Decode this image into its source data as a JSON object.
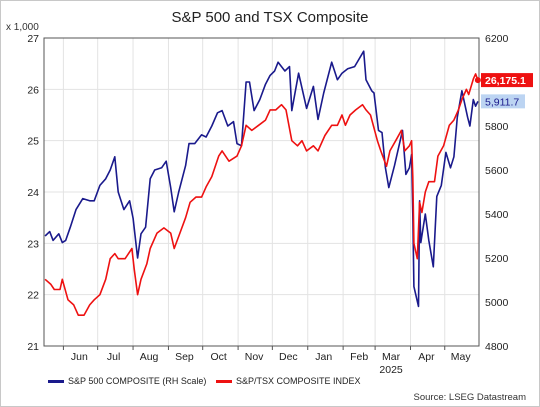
{
  "chart_data": {
    "type": "line",
    "title": "S&P 500 and TSX Composite",
    "unit_label": "x 1,000",
    "source": "Source: LSEG Datastream",
    "left_axis": {
      "min": 21,
      "max": 27,
      "ticks": [
        "27",
        "26",
        "25",
        "24",
        "23",
        "22",
        "21"
      ]
    },
    "right_axis": {
      "min": 4800,
      "max": 6200,
      "ticks": [
        "6200",
        "6000",
        "5800",
        "5600",
        "5400",
        "5200",
        "5000",
        "4800"
      ]
    },
    "x_axis": {
      "start": "2024-05-15",
      "end": "2025-05-31",
      "months": [
        {
          "label": "Jun",
          "date": "2024-06-15"
        },
        {
          "label": "Jul",
          "date": "2024-07-15"
        },
        {
          "label": "Aug",
          "date": "2024-08-15"
        },
        {
          "label": "Sep",
          "date": "2024-09-15"
        },
        {
          "label": "Oct",
          "date": "2024-10-15"
        },
        {
          "label": "Nov",
          "date": "2024-11-15"
        },
        {
          "label": "Dec",
          "date": "2024-12-15"
        },
        {
          "label": "Jan",
          "date": "2025-01-15"
        },
        {
          "label": "Feb",
          "date": "2025-02-15"
        },
        {
          "label": "Mar",
          "date": "2025-03-15"
        },
        {
          "label": "Apr",
          "date": "2025-04-15"
        },
        {
          "label": "May",
          "date": "2025-05-15"
        }
      ],
      "year_label": "2025",
      "year_date": "2025-03-15"
    },
    "grid": true,
    "series": [
      {
        "name": "S&P 500 COMPOSITE (RH Scale)",
        "axis": "right",
        "color": "#1a1a8c",
        "end_label": "5,911.7",
        "points": [
          [
            "2024-05-16",
            5300
          ],
          [
            "2024-05-20",
            5320
          ],
          [
            "2024-05-23",
            5280
          ],
          [
            "2024-05-28",
            5310
          ],
          [
            "2024-05-31",
            5270
          ],
          [
            "2024-06-03",
            5280
          ],
          [
            "2024-06-07",
            5340
          ],
          [
            "2024-06-12",
            5420
          ],
          [
            "2024-06-18",
            5470
          ],
          [
            "2024-06-24",
            5460
          ],
          [
            "2024-06-28",
            5460
          ],
          [
            "2024-07-03",
            5530
          ],
          [
            "2024-07-08",
            5560
          ],
          [
            "2024-07-12",
            5600
          ],
          [
            "2024-07-16",
            5660
          ],
          [
            "2024-07-19",
            5500
          ],
          [
            "2024-07-24",
            5420
          ],
          [
            "2024-07-29",
            5460
          ],
          [
            "2024-08-01",
            5380
          ],
          [
            "2024-08-05",
            5200
          ],
          [
            "2024-08-08",
            5310
          ],
          [
            "2024-08-12",
            5340
          ],
          [
            "2024-08-16",
            5560
          ],
          [
            "2024-08-20",
            5600
          ],
          [
            "2024-08-26",
            5610
          ],
          [
            "2024-08-30",
            5640
          ],
          [
            "2024-09-03",
            5520
          ],
          [
            "2024-09-06",
            5410
          ],
          [
            "2024-09-10",
            5500
          ],
          [
            "2024-09-16",
            5620
          ],
          [
            "2024-09-19",
            5720
          ],
          [
            "2024-09-24",
            5720
          ],
          [
            "2024-09-30",
            5760
          ],
          [
            "2024-10-04",
            5750
          ],
          [
            "2024-10-09",
            5800
          ],
          [
            "2024-10-14",
            5860
          ],
          [
            "2024-10-18",
            5870
          ],
          [
            "2024-10-23",
            5800
          ],
          [
            "2024-10-28",
            5820
          ],
          [
            "2024-10-31",
            5720
          ],
          [
            "2024-11-04",
            5710
          ],
          [
            "2024-11-08",
            6000
          ],
          [
            "2024-11-11",
            6000
          ],
          [
            "2024-11-15",
            5870
          ],
          [
            "2024-11-20",
            5920
          ],
          [
            "2024-11-25",
            5990
          ],
          [
            "2024-11-29",
            6030
          ],
          [
            "2024-12-03",
            6050
          ],
          [
            "2024-12-06",
            6090
          ],
          [
            "2024-12-12",
            6050
          ],
          [
            "2024-12-16",
            6070
          ],
          [
            "2024-12-18",
            5870
          ],
          [
            "2024-12-24",
            6040
          ],
          [
            "2024-12-31",
            5880
          ],
          [
            "2025-01-06",
            5980
          ],
          [
            "2025-01-10",
            5830
          ],
          [
            "2025-01-15",
            5950
          ],
          [
            "2025-01-22",
            6090
          ],
          [
            "2025-01-27",
            6010
          ],
          [
            "2025-01-31",
            6040
          ],
          [
            "2025-02-05",
            6060
          ],
          [
            "2025-02-11",
            6070
          ],
          [
            "2025-02-19",
            6140
          ],
          [
            "2025-02-21",
            6010
          ],
          [
            "2025-02-26",
            5960
          ],
          [
            "2025-02-28",
            5950
          ],
          [
            "2025-03-04",
            5780
          ],
          [
            "2025-03-07",
            5770
          ],
          [
            "2025-03-10",
            5610
          ],
          [
            "2025-03-13",
            5520
          ],
          [
            "2025-03-18",
            5620
          ],
          [
            "2025-03-25",
            5780
          ],
          [
            "2025-03-28",
            5580
          ],
          [
            "2025-03-31",
            5610
          ],
          [
            "2025-04-02",
            5670
          ],
          [
            "2025-04-03",
            5400
          ],
          [
            "2025-04-04",
            5070
          ],
          [
            "2025-04-08",
            4980
          ],
          [
            "2025-04-09",
            5460
          ],
          [
            "2025-04-10",
            5270
          ],
          [
            "2025-04-14",
            5400
          ],
          [
            "2025-04-17",
            5280
          ],
          [
            "2025-04-21",
            5160
          ],
          [
            "2025-04-24",
            5480
          ],
          [
            "2025-04-28",
            5530
          ],
          [
            "2025-05-02",
            5680
          ],
          [
            "2025-05-06",
            5610
          ],
          [
            "2025-05-09",
            5660
          ],
          [
            "2025-05-12",
            5840
          ],
          [
            "2025-05-16",
            5960
          ],
          [
            "2025-05-21",
            5840
          ],
          [
            "2025-05-23",
            5800
          ],
          [
            "2025-05-26",
            5920
          ],
          [
            "2025-05-28",
            5890
          ],
          [
            "2025-05-30",
            5912
          ]
        ]
      },
      {
        "name": "S&P/TSX COMPOSITE INDEX",
        "axis": "left",
        "color": "#ee1111",
        "end_label": "26,175.1",
        "points": [
          [
            "2024-05-16",
            22.3
          ],
          [
            "2024-05-21",
            22.2
          ],
          [
            "2024-05-24",
            22.1
          ],
          [
            "2024-05-29",
            22.1
          ],
          [
            "2024-05-31",
            22.3
          ],
          [
            "2024-06-05",
            21.9
          ],
          [
            "2024-06-10",
            21.8
          ],
          [
            "2024-06-14",
            21.6
          ],
          [
            "2024-06-19",
            21.6
          ],
          [
            "2024-06-24",
            21.8
          ],
          [
            "2024-06-28",
            21.9
          ],
          [
            "2024-07-03",
            22.0
          ],
          [
            "2024-07-08",
            22.3
          ],
          [
            "2024-07-12",
            22.7
          ],
          [
            "2024-07-16",
            22.8
          ],
          [
            "2024-07-19",
            22.7
          ],
          [
            "2024-07-25",
            22.7
          ],
          [
            "2024-07-31",
            22.9
          ],
          [
            "2024-08-02",
            22.5
          ],
          [
            "2024-08-05",
            22.0
          ],
          [
            "2024-08-08",
            22.3
          ],
          [
            "2024-08-13",
            22.6
          ],
          [
            "2024-08-16",
            22.9
          ],
          [
            "2024-08-22",
            23.2
          ],
          [
            "2024-08-28",
            23.3
          ],
          [
            "2024-09-03",
            23.2
          ],
          [
            "2024-09-06",
            22.9
          ],
          [
            "2024-09-11",
            23.2
          ],
          [
            "2024-09-16",
            23.5
          ],
          [
            "2024-09-20",
            23.8
          ],
          [
            "2024-09-25",
            23.9
          ],
          [
            "2024-09-30",
            23.9
          ],
          [
            "2024-10-04",
            24.1
          ],
          [
            "2024-10-09",
            24.3
          ],
          [
            "2024-10-15",
            24.7
          ],
          [
            "2024-10-18",
            24.8
          ],
          [
            "2024-10-24",
            24.6
          ],
          [
            "2024-10-31",
            24.7
          ],
          [
            "2024-11-04",
            24.9
          ],
          [
            "2024-11-08",
            25.3
          ],
          [
            "2024-11-13",
            25.2
          ],
          [
            "2024-11-19",
            25.3
          ],
          [
            "2024-11-25",
            25.4
          ],
          [
            "2024-11-29",
            25.6
          ],
          [
            "2024-12-04",
            25.6
          ],
          [
            "2024-12-09",
            25.7
          ],
          [
            "2024-12-13",
            25.6
          ],
          [
            "2024-12-18",
            25.0
          ],
          [
            "2024-12-23",
            24.9
          ],
          [
            "2024-12-27",
            25.0
          ],
          [
            "2024-12-31",
            24.8
          ],
          [
            "2025-01-06",
            24.9
          ],
          [
            "2025-01-10",
            24.8
          ],
          [
            "2025-01-16",
            25.1
          ],
          [
            "2025-01-22",
            25.3
          ],
          [
            "2025-01-27",
            25.3
          ],
          [
            "2025-01-31",
            25.5
          ],
          [
            "2025-02-03",
            25.3
          ],
          [
            "2025-02-07",
            25.5
          ],
          [
            "2025-02-12",
            25.6
          ],
          [
            "2025-02-18",
            25.7
          ],
          [
            "2025-02-21",
            25.6
          ],
          [
            "2025-02-25",
            25.5
          ],
          [
            "2025-03-03",
            25.0
          ],
          [
            "2025-03-06",
            24.8
          ],
          [
            "2025-03-11",
            24.5
          ],
          [
            "2025-03-14",
            24.8
          ],
          [
            "2025-03-19",
            25.0
          ],
          [
            "2025-03-24",
            25.2
          ],
          [
            "2025-03-27",
            24.8
          ],
          [
            "2025-03-31",
            24.9
          ],
          [
            "2025-04-02",
            25.0
          ],
          [
            "2025-04-03",
            24.3
          ],
          [
            "2025-04-04",
            23.0
          ],
          [
            "2025-04-07",
            22.7
          ],
          [
            "2025-04-09",
            23.8
          ],
          [
            "2025-04-11",
            23.6
          ],
          [
            "2025-04-14",
            24.0
          ],
          [
            "2025-04-17",
            24.2
          ],
          [
            "2025-04-22",
            24.2
          ],
          [
            "2025-04-25",
            24.7
          ],
          [
            "2025-04-30",
            24.9
          ],
          [
            "2025-05-05",
            25.3
          ],
          [
            "2025-05-09",
            25.4
          ],
          [
            "2025-05-13",
            25.6
          ],
          [
            "2025-05-16",
            25.8
          ],
          [
            "2025-05-20",
            26.0
          ],
          [
            "2025-05-22",
            25.9
          ],
          [
            "2025-05-26",
            26.2
          ],
          [
            "2025-05-28",
            26.3
          ],
          [
            "2025-05-30",
            26.18
          ]
        ]
      }
    ]
  }
}
